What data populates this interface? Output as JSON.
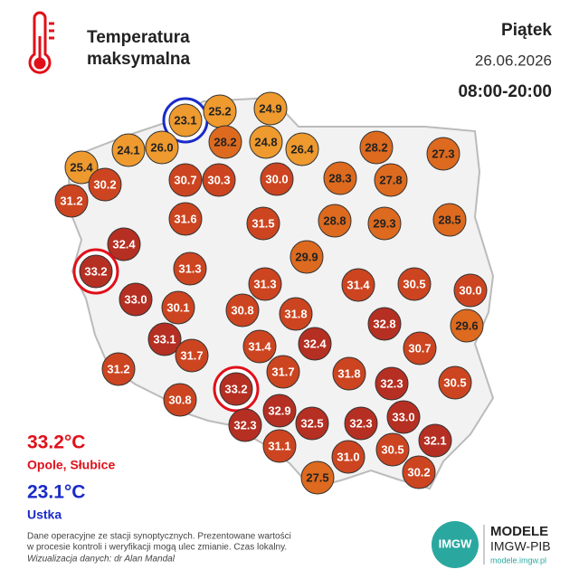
{
  "header": {
    "title_lines": [
      "Temperatura",
      "maksymalna"
    ],
    "day": "Piątek",
    "date": "26.06.2026",
    "hours": "08:00-20:00"
  },
  "stations": {
    "values": [
      23.1,
      25.2,
      24.9,
      28.2,
      24.8,
      26.4,
      28.2,
      27.3,
      24.1,
      26.0,
      25.4,
      30.2,
      30.7,
      30.3,
      30.0,
      28.3,
      27.8,
      31.2,
      31.6,
      31.5,
      28.8,
      29.3,
      28.5,
      32.4,
      29.9,
      33.2,
      31.3,
      31.3,
      31.4,
      30.5,
      30.0,
      33.0,
      30.1,
      30.8,
      31.8,
      32.8,
      29.6,
      33.1,
      32.4,
      31.7,
      31.4,
      30.7,
      31.2,
      31.7,
      31.8,
      33.2,
      32.3,
      30.5,
      30.8,
      32.9,
      33.0,
      32.3,
      32.5,
      32.3,
      32.1,
      31.1,
      30.5,
      31.0,
      30.2,
      27.5
    ],
    "value_labels": [
      "23.1",
      "25.2",
      "24.9",
      "28.2",
      "24.8",
      "26.4",
      "28.2",
      "27.3",
      "24.1",
      "26.0",
      "25.4",
      "30.2",
      "30.7",
      "30.3",
      "30.0",
      "28.3",
      "27.8",
      "31.2",
      "31.6",
      "31.5",
      "28.8",
      "29.3",
      "28.5",
      "32.4",
      "29.9",
      "33.2",
      "31.3",
      "31.3",
      "31.4",
      "30.5",
      "30.0",
      "33.0",
      "30.1",
      "30.8",
      "31.8",
      "32.8",
      "29.6",
      "33.1",
      "32.4",
      "31.7",
      "31.4",
      "30.7",
      "31.2",
      "31.7",
      "31.8",
      "33.2",
      "32.3",
      "30.5",
      "30.8",
      "32.9",
      "33.0",
      "32.3",
      "32.5",
      "32.3",
      "32.1",
      "31.1",
      "30.5",
      "31.0",
      "30.2",
      "27.5"
    ]
  },
  "max": {
    "value": 33.2,
    "label": "33.2°C",
    "places": "Opole, Słubice",
    "color": "#e0101a"
  },
  "min": {
    "value": 23.1,
    "label": "23.1°C",
    "places": "Ustka",
    "color": "#1a2bc8"
  },
  "footer": {
    "lines": [
      "Dane operacyjne ze stacji synoptycznych. Prezentowane wartości",
      "w procesie kontroli i weryfikacji mogą ulec zmianie. Czas lokalny."
    ],
    "credit": "Wizualizacja danych: dr Alan Mandal"
  },
  "logo": {
    "badge": "IMGW",
    "name": "MODELE",
    "org": "IMGW-PIB",
    "url": "modele.imgw.pl"
  }
}
